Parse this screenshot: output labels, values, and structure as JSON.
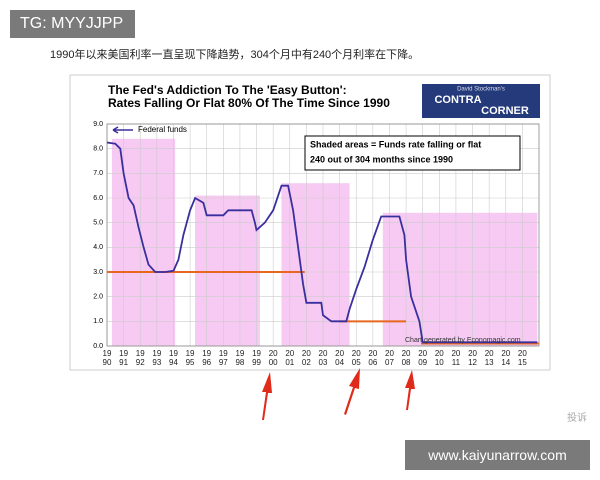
{
  "header": {
    "tag": "TG: MYYJJPP",
    "caption": "1990年以来美国利率一直呈现下降趋势，304个月中有240个月利率在下降。"
  },
  "footer": {
    "complain": "投诉",
    "site": "www.kaiyunarrow.com"
  },
  "chart_data": {
    "type": "line",
    "title": "The Fed's Addiction To The 'Easy Button':",
    "subtitle": "Rates Falling Or Flat 80% Of The Time Since 1990",
    "logo": {
      "top": "David Stockman's",
      "line1": "CONTRA",
      "line2": "CORNER"
    },
    "annotation": [
      "Shaded areas = Funds rate falling or flat",
      "240 out of 304 months since 1990"
    ],
    "source": "Chart generated by Economagic.com",
    "xlim": [
      1990,
      2016
    ],
    "ylim": [
      0,
      9
    ],
    "yticks": [
      {
        "value": 0,
        "label": "0.0"
      },
      {
        "value": 1,
        "label": "1.0"
      },
      {
        "value": 2,
        "label": "2.0"
      },
      {
        "value": 3,
        "label": "3.0"
      },
      {
        "value": 4,
        "label": "4.0"
      },
      {
        "value": 5,
        "label": "5.0"
      },
      {
        "value": 6,
        "label": "6.0"
      },
      {
        "value": 7,
        "label": "7.0"
      },
      {
        "value": 8,
        "label": "8.0"
      },
      {
        "value": 9,
        "label": "9.0"
      }
    ],
    "xticks": [
      {
        "value": 1990,
        "label": "19 90"
      },
      {
        "value": 1991,
        "label": "19 91"
      },
      {
        "value": 1992,
        "label": "19 92"
      },
      {
        "value": 1993,
        "label": "19 93"
      },
      {
        "value": 1994,
        "label": "19 94"
      },
      {
        "value": 1995,
        "label": "19 95"
      },
      {
        "value": 1996,
        "label": "19 96"
      },
      {
        "value": 1997,
        "label": "19 97"
      },
      {
        "value": 1998,
        "label": "19 98"
      },
      {
        "value": 1999,
        "label": "19 99"
      },
      {
        "value": 2000,
        "label": "20 00"
      },
      {
        "value": 2001,
        "label": "20 01"
      },
      {
        "value": 2002,
        "label": "20 02"
      },
      {
        "value": 2003,
        "label": "20 03"
      },
      {
        "value": 2004,
        "label": "20 04"
      },
      {
        "value": 2005,
        "label": "20 05"
      },
      {
        "value": 2006,
        "label": "20 06"
      },
      {
        "value": 2007,
        "label": "20 07"
      },
      {
        "value": 2008,
        "label": "20 08"
      },
      {
        "value": 2009,
        "label": "20 09"
      },
      {
        "value": 2010,
        "label": "20 10"
      },
      {
        "value": 2011,
        "label": "20 11"
      },
      {
        "value": 2012,
        "label": "20 12"
      },
      {
        "value": 2013,
        "label": "20 13"
      },
      {
        "value": 2014,
        "label": "20 14"
      },
      {
        "value": 2015,
        "label": "20 15"
      }
    ],
    "grid": true,
    "shaded_color": "#f6caf2",
    "shaded_regions": [
      {
        "start": 1990.3,
        "end": 1994.1,
        "top": 8.4
      },
      {
        "start": 1995.3,
        "end": 1999.2,
        "top": 6.1
      },
      {
        "start": 2000.5,
        "end": 2004.6,
        "top": 6.6
      },
      {
        "start": 2006.6,
        "end": 2015.9,
        "top": 5.4
      }
    ],
    "reference_color": "#e8671e",
    "reference_lines": [
      {
        "start": 1990,
        "end": 2001.9,
        "value": 3.0
      },
      {
        "start": 2004.0,
        "end": 2008.0,
        "value": 1.0
      },
      {
        "start": 2008.9,
        "end": 2016,
        "value": 0.1
      }
    ],
    "series": [
      {
        "name": "Federal funds",
        "color": "#3a2f9e",
        "x": [
          1990.0,
          1990.5,
          1990.8,
          1991.0,
          1991.3,
          1991.6,
          1991.9,
          1992.2,
          1992.5,
          1992.9,
          1993.5,
          1994.0,
          1994.3,
          1994.6,
          1995.0,
          1995.3,
          1995.8,
          1996.0,
          1996.5,
          1997.0,
          1997.3,
          1998.0,
          1998.7,
          1998.9,
          1999.0,
          1999.5,
          2000.0,
          2000.5,
          2000.9,
          2001.2,
          2001.5,
          2001.8,
          2002.0,
          2002.9,
          2003.0,
          2003.5,
          2004.4,
          2004.6,
          2005.0,
          2005.5,
          2006.0,
          2006.5,
          2007.6,
          2007.9,
          2008.0,
          2008.3,
          2008.8,
          2009.0,
          2015.9
        ],
        "values": [
          8.25,
          8.2,
          8.0,
          7.0,
          6.0,
          5.7,
          4.8,
          4.0,
          3.3,
          3.0,
          3.0,
          3.05,
          3.5,
          4.5,
          5.5,
          6.0,
          5.8,
          5.3,
          5.3,
          5.3,
          5.5,
          5.5,
          5.5,
          5.0,
          4.7,
          5.0,
          5.5,
          6.5,
          6.5,
          5.5,
          4.0,
          2.5,
          1.75,
          1.75,
          1.25,
          1.0,
          1.0,
          1.5,
          2.3,
          3.2,
          4.3,
          5.25,
          5.25,
          4.5,
          3.5,
          2.0,
          1.0,
          0.15,
          0.15
        ]
      }
    ]
  }
}
